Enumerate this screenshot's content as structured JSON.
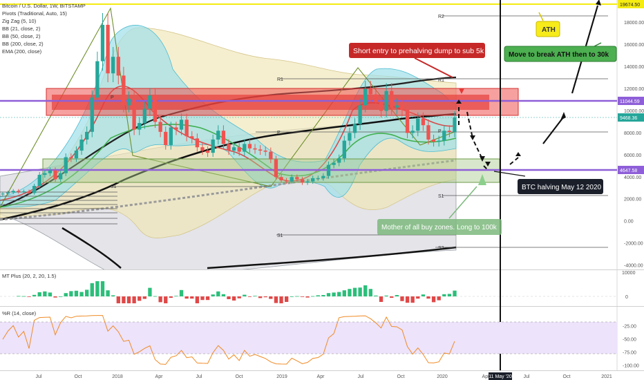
{
  "header": {
    "title": "Bitcoin / U.S. Dollar, 1W, BITSTAMP",
    "indicators": [
      "Pivots (Traditional, Auto, 15)",
      "Zig Zag (5, 10)",
      "BB (21, close, 2)",
      "BB (50, close, 2)",
      "BB (200, close, 2)",
      "EMA (200, close)"
    ]
  },
  "colors": {
    "up": "#26a69a",
    "down": "#ef5350",
    "ath_line": "#f5ec12",
    "level_line": "#8e5fd8",
    "bb21": "#2ab1c8",
    "bb50": "#e8d88a",
    "bb200": "#b9b9c3",
    "ema200": "#111111"
  },
  "price_labels": {
    "ath": "19674.50",
    "upper": "11044.59",
    "current": "9468.36",
    "lower": "4647.58"
  },
  "chart_data": [
    {
      "type": "candlestick",
      "title": "Bitcoin / U.S. Dollar, 1W, BITSTAMP",
      "x_ticks": [
        "Jul",
        "Oct",
        "2018",
        "Apr",
        "Jul",
        "Oct",
        "2019",
        "Apr",
        "Jul",
        "Oct",
        "2020",
        "Apr",
        "11 May '20",
        "Jul",
        "Oct",
        "2021"
      ],
      "y_ticks": [
        18000,
        16000,
        14000,
        12000,
        10000,
        8000,
        6000,
        4000,
        2000,
        0,
        -2000,
        -4000
      ],
      "ylim": [
        -4400,
        20300
      ],
      "levels": {
        "ath": 19674.5,
        "upper": 11044.59,
        "lower": 4647.58,
        "current": 9468.36
      },
      "pivot_labels": [
        "R2",
        "R1",
        "R1",
        "P",
        "P",
        "P",
        "S1",
        "S1",
        "S1",
        "S2"
      ],
      "annotations": [
        "Short entry to prehalving dump to sub 5k",
        "ATH",
        "Move to break ATH then to 30k",
        "BTC halving May 12 2020",
        "Mother of all buy zones. Long to 100k"
      ],
      "weekly_closes": [
        2500,
        2600,
        2750,
        2650,
        2700,
        2550,
        3200,
        4200,
        4350,
        4600,
        3800,
        4350,
        5800,
        5700,
        6400,
        7400,
        8100,
        11200,
        14500,
        17800,
        13400,
        14900,
        13200,
        10500,
        11100,
        8300,
        8900,
        10200,
        11400,
        9000,
        8100,
        6900,
        8500,
        8300,
        9200,
        7700,
        7500,
        6700,
        6400,
        6200,
        7400,
        8200,
        7000,
        6400,
        6700,
        6300,
        7000,
        6600,
        6500,
        6400,
        6300,
        5600,
        4000,
        3700,
        3600,
        4000,
        3800,
        3500,
        3600,
        3900,
        3900,
        4100,
        5100,
        5300,
        5700,
        7300,
        8000,
        8800,
        10500,
        12000,
        11500,
        10800,
        10000,
        11800,
        10300,
        10500,
        10100,
        8000,
        8200,
        9300,
        8700,
        7400,
        7200,
        7300,
        8200,
        8100,
        9400
      ]
    },
    {
      "type": "histogram",
      "title": "MT Plus (20, 2, 20, 1.5)",
      "y_ticks": [
        10000,
        0
      ]
    },
    {
      "type": "line",
      "title": "%R (14, close)",
      "y_ticks": [
        -25,
        -50,
        -75,
        -100
      ],
      "ylim": [
        -105,
        8
      ],
      "bands": [
        -20,
        -80
      ]
    }
  ]
}
